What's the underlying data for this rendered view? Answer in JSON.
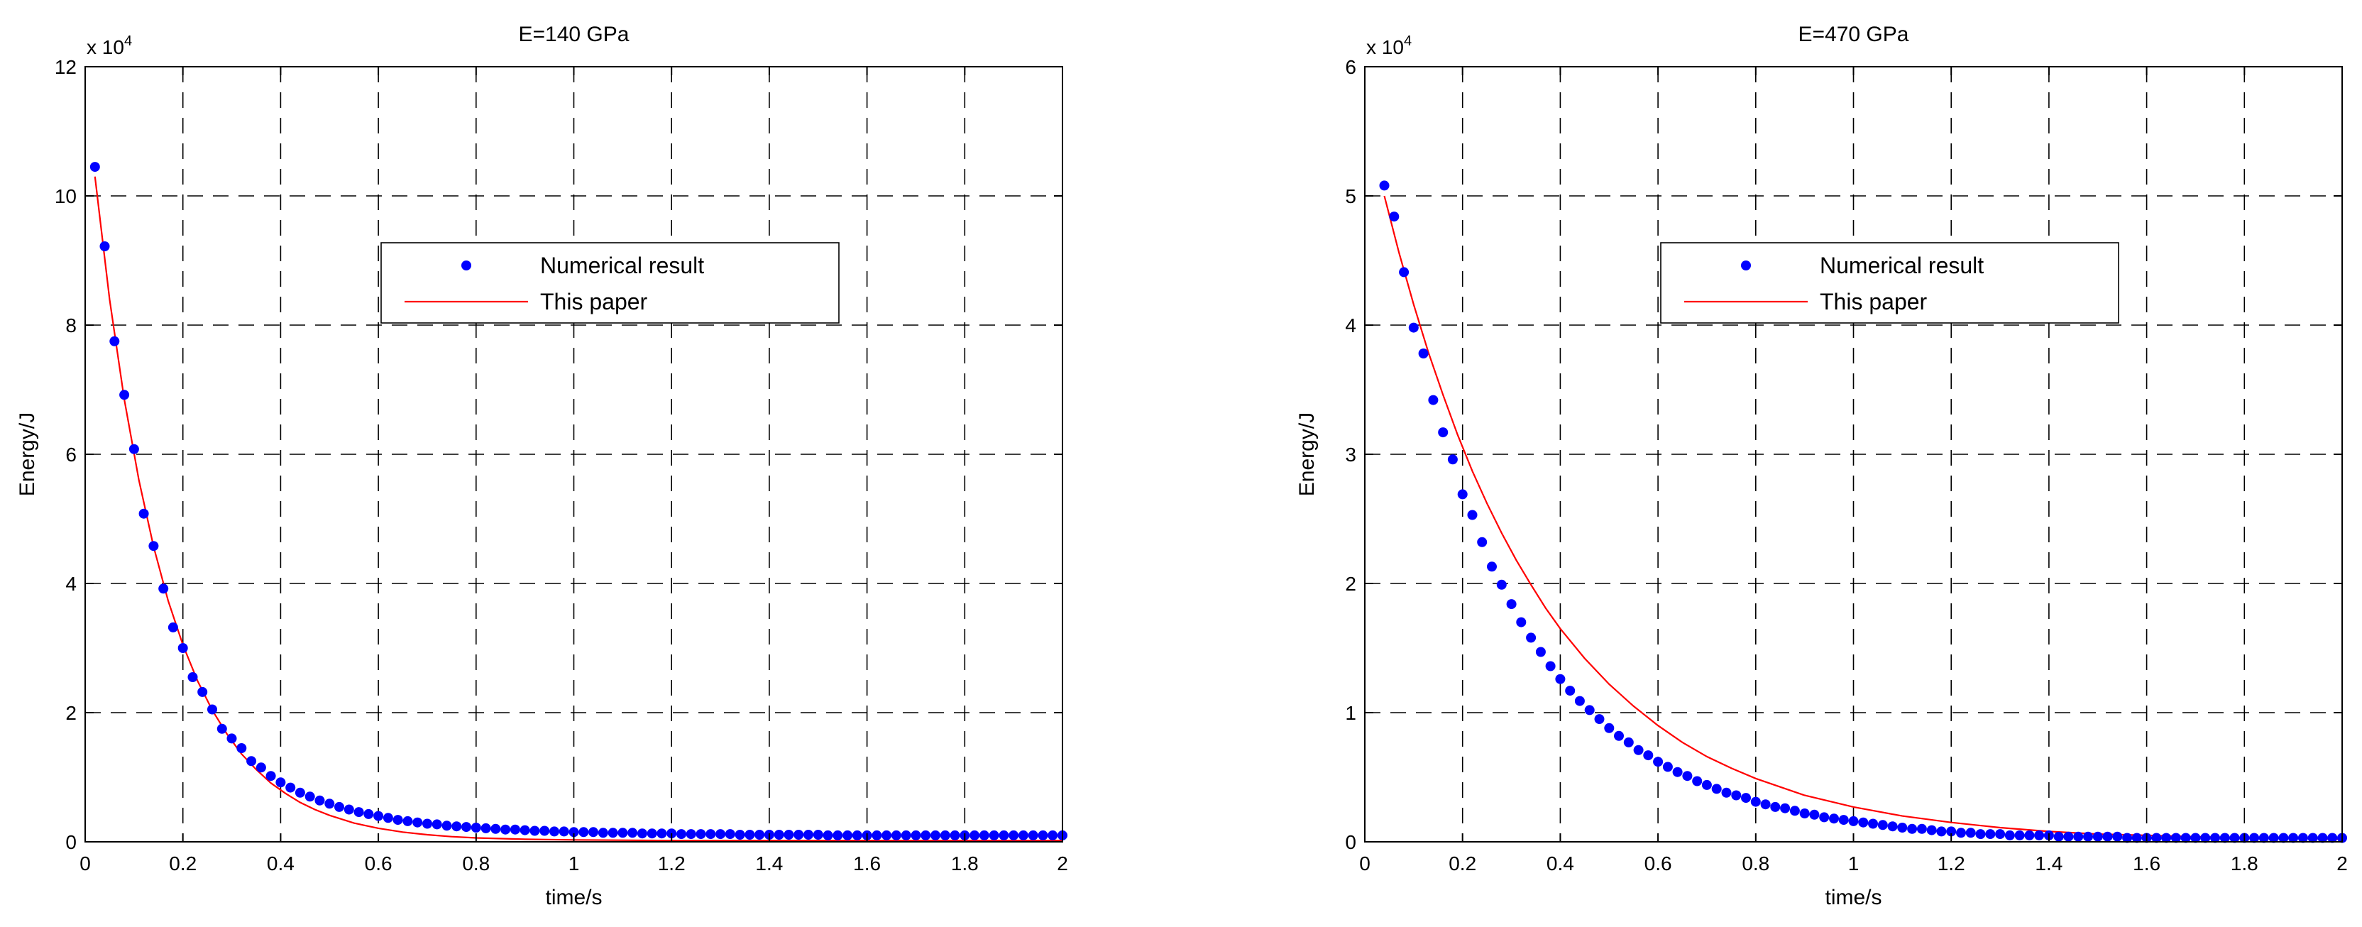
{
  "chart_data": [
    {
      "type": "scatter",
      "title": "E=140 GPa",
      "xlabel": "time/s",
      "ylabel": "Energy/J",
      "y_multiplier_label": "x 10",
      "y_multiplier_exp": "4",
      "xlim": [
        0,
        2
      ],
      "ylim": [
        0,
        12
      ],
      "x_ticks": [
        "0",
        "0.2",
        "0.4",
        "0.6",
        "0.8",
        "1",
        "1.2",
        "1.4",
        "1.6",
        "1.8",
        "2"
      ],
      "y_ticks": [
        "0",
        "2",
        "4",
        "6",
        "8",
        "10",
        "12"
      ],
      "grid": true,
      "legend_position": "upper-center",
      "series": [
        {
          "name": "Numerical result",
          "style": "markers",
          "color": "#0000ff",
          "x": [
            0.02,
            0.04,
            0.06,
            0.08,
            0.1,
            0.12,
            0.14,
            0.16,
            0.18,
            0.2,
            0.22,
            0.24,
            0.26,
            0.28,
            0.3,
            0.32,
            0.34,
            0.36,
            0.38,
            0.4,
            0.42,
            0.44,
            0.46,
            0.48,
            0.5,
            0.52,
            0.54,
            0.56,
            0.58,
            0.6,
            0.62,
            0.64,
            0.66,
            0.68,
            0.7,
            0.72,
            0.74,
            0.76,
            0.78,
            0.8,
            0.82,
            0.84,
            0.86,
            0.88,
            0.9,
            0.92,
            0.94,
            0.96,
            0.98,
            1.0,
            1.02,
            1.04,
            1.06,
            1.08,
            1.1,
            1.12,
            1.14,
            1.16,
            1.18,
            1.2,
            1.22,
            1.24,
            1.26,
            1.28,
            1.3,
            1.32,
            1.34,
            1.36,
            1.38,
            1.4,
            1.42,
            1.44,
            1.46,
            1.48,
            1.5,
            1.52,
            1.54,
            1.56,
            1.58,
            1.6,
            1.62,
            1.64,
            1.66,
            1.68,
            1.7,
            1.72,
            1.74,
            1.76,
            1.78,
            1.8,
            1.82,
            1.84,
            1.86,
            1.88,
            1.9,
            1.92,
            1.94,
            1.96,
            1.98,
            2.0
          ],
          "y": [
            10.45,
            9.22,
            7.75,
            6.92,
            6.08,
            5.08,
            4.58,
            3.92,
            3.32,
            3.0,
            2.55,
            2.32,
            2.05,
            1.75,
            1.6,
            1.45,
            1.25,
            1.15,
            1.02,
            0.92,
            0.84,
            0.76,
            0.7,
            0.64,
            0.59,
            0.54,
            0.5,
            0.46,
            0.43,
            0.4,
            0.37,
            0.34,
            0.32,
            0.3,
            0.28,
            0.27,
            0.25,
            0.24,
            0.23,
            0.22,
            0.21,
            0.2,
            0.19,
            0.19,
            0.18,
            0.17,
            0.17,
            0.16,
            0.16,
            0.15,
            0.15,
            0.15,
            0.14,
            0.14,
            0.14,
            0.14,
            0.13,
            0.13,
            0.13,
            0.13,
            0.12,
            0.12,
            0.12,
            0.12,
            0.12,
            0.12,
            0.11,
            0.11,
            0.11,
            0.11,
            0.11,
            0.11,
            0.11,
            0.11,
            0.11,
            0.1,
            0.1,
            0.1,
            0.1,
            0.1,
            0.1,
            0.1,
            0.1,
            0.1,
            0.1,
            0.1,
            0.1,
            0.1,
            0.1,
            0.1,
            0.1,
            0.1,
            0.1,
            0.1,
            0.1,
            0.1,
            0.1,
            0.1,
            0.1,
            0.1
          ]
        },
        {
          "name": "This paper",
          "style": "line",
          "color": "#ff0000",
          "x": [
            0.02,
            0.05,
            0.08,
            0.11,
            0.14,
            0.17,
            0.2,
            0.23,
            0.26,
            0.29,
            0.32,
            0.35,
            0.38,
            0.41,
            0.44,
            0.47,
            0.5,
            0.55,
            0.6,
            0.65,
            0.7,
            0.75,
            0.8,
            0.9,
            1.0,
            1.2,
            1.4,
            1.6,
            1.8,
            2.0
          ],
          "y": [
            10.3,
            8.4,
            6.85,
            5.6,
            4.57,
            3.73,
            3.05,
            2.49,
            2.04,
            1.67,
            1.36,
            1.12,
            0.91,
            0.75,
            0.61,
            0.5,
            0.41,
            0.29,
            0.21,
            0.15,
            0.11,
            0.08,
            0.06,
            0.04,
            0.03,
            0.02,
            0.02,
            0.02,
            0.02,
            0.02
          ]
        }
      ]
    },
    {
      "type": "scatter",
      "title": "E=470 GPa",
      "xlabel": "time/s",
      "ylabel": "Energy/J",
      "y_multiplier_label": "x 10",
      "y_multiplier_exp": "4",
      "xlim": [
        0,
        2
      ],
      "ylim": [
        0,
        6
      ],
      "x_ticks": [
        "0",
        "0.2",
        "0.4",
        "0.6",
        "0.8",
        "1",
        "1.2",
        "1.4",
        "1.6",
        "1.8",
        "2"
      ],
      "y_ticks": [
        "0",
        "1",
        "2",
        "3",
        "4",
        "5",
        "6"
      ],
      "grid": true,
      "legend_position": "upper-center",
      "series": [
        {
          "name": "Numerical result",
          "style": "markers",
          "color": "#0000ff",
          "x": [
            0.04,
            0.06,
            0.08,
            0.1,
            0.12,
            0.14,
            0.16,
            0.18,
            0.2,
            0.22,
            0.24,
            0.26,
            0.28,
            0.3,
            0.32,
            0.34,
            0.36,
            0.38,
            0.4,
            0.42,
            0.44,
            0.46,
            0.48,
            0.5,
            0.52,
            0.54,
            0.56,
            0.58,
            0.6,
            0.62,
            0.64,
            0.66,
            0.68,
            0.7,
            0.72,
            0.74,
            0.76,
            0.78,
            0.8,
            0.82,
            0.84,
            0.86,
            0.88,
            0.9,
            0.92,
            0.94,
            0.96,
            0.98,
            1.0,
            1.02,
            1.04,
            1.06,
            1.08,
            1.1,
            1.12,
            1.14,
            1.16,
            1.18,
            1.2,
            1.22,
            1.24,
            1.26,
            1.28,
            1.3,
            1.32,
            1.34,
            1.36,
            1.38,
            1.4,
            1.42,
            1.44,
            1.46,
            1.48,
            1.5,
            1.52,
            1.54,
            1.56,
            1.58,
            1.6,
            1.62,
            1.64,
            1.66,
            1.68,
            1.7,
            1.72,
            1.74,
            1.76,
            1.78,
            1.8,
            1.82,
            1.84,
            1.86,
            1.88,
            1.9,
            1.92,
            1.94,
            1.96,
            1.98,
            2.0
          ],
          "y": [
            5.08,
            4.84,
            4.41,
            3.98,
            3.78,
            3.42,
            3.17,
            2.96,
            2.69,
            2.53,
            2.32,
            2.13,
            1.99,
            1.84,
            1.7,
            1.58,
            1.47,
            1.36,
            1.26,
            1.17,
            1.09,
            1.02,
            0.95,
            0.88,
            0.82,
            0.77,
            0.71,
            0.67,
            0.62,
            0.58,
            0.54,
            0.51,
            0.47,
            0.44,
            0.41,
            0.38,
            0.36,
            0.34,
            0.31,
            0.29,
            0.27,
            0.26,
            0.24,
            0.22,
            0.21,
            0.19,
            0.18,
            0.17,
            0.16,
            0.15,
            0.14,
            0.13,
            0.12,
            0.11,
            0.1,
            0.1,
            0.09,
            0.08,
            0.08,
            0.07,
            0.07,
            0.06,
            0.06,
            0.06,
            0.05,
            0.05,
            0.05,
            0.05,
            0.05,
            0.04,
            0.04,
            0.04,
            0.04,
            0.04,
            0.04,
            0.04,
            0.03,
            0.03,
            0.03,
            0.03,
            0.03,
            0.03,
            0.03,
            0.03,
            0.03,
            0.03,
            0.03,
            0.03,
            0.03,
            0.03,
            0.03,
            0.03,
            0.03,
            0.03,
            0.03,
            0.03,
            0.03,
            0.03,
            0.03
          ]
        },
        {
          "name": "This paper",
          "style": "line",
          "color": "#ff0000",
          "x": [
            0.04,
            0.07,
            0.1,
            0.13,
            0.16,
            0.19,
            0.22,
            0.25,
            0.28,
            0.31,
            0.34,
            0.37,
            0.4,
            0.45,
            0.5,
            0.55,
            0.6,
            0.65,
            0.7,
            0.75,
            0.8,
            0.9,
            1.0,
            1.1,
            1.2,
            1.3,
            1.4,
            1.5,
            1.6,
            1.7,
            1.8,
            1.9,
            2.0
          ],
          "y": [
            5.0,
            4.56,
            4.16,
            3.79,
            3.46,
            3.15,
            2.87,
            2.62,
            2.39,
            2.18,
            1.99,
            1.81,
            1.65,
            1.42,
            1.22,
            1.05,
            0.9,
            0.77,
            0.66,
            0.57,
            0.49,
            0.36,
            0.27,
            0.2,
            0.15,
            0.11,
            0.08,
            0.06,
            0.05,
            0.04,
            0.03,
            0.03,
            0.02
          ]
        }
      ]
    }
  ]
}
